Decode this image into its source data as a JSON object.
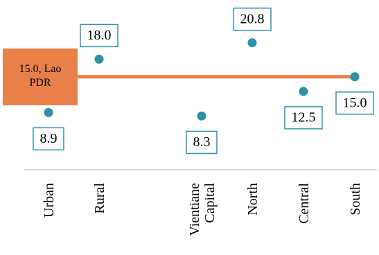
{
  "chart_data": {
    "type": "scatter",
    "title": "",
    "xlabel": "",
    "ylabel": "",
    "categories": [
      "Urban",
      "Rural",
      "Vientiane Capital",
      "North",
      "Central",
      "South"
    ],
    "category_lines": [
      [
        "Urban"
      ],
      [
        "Rural"
      ],
      [
        "Vientiane",
        "Capital"
      ],
      [
        "North"
      ],
      [
        "Central"
      ],
      [
        "South"
      ]
    ],
    "values": [
      8.9,
      18.0,
      8.3,
      20.8,
      12.5,
      15.0
    ],
    "value_labels": [
      "8.9",
      "18.0",
      "8.3",
      "20.8",
      "12.5",
      "15.0"
    ],
    "reference": {
      "value": 15.0,
      "label_lines": [
        "15.0, Lao",
        "PDR"
      ],
      "color": "#e8804a"
    },
    "marker_color": "#2e8fa8",
    "box_border_color": "#2e8fa8",
    "axis_color": "#d0d0d0",
    "ylim": [
      8.0,
      21.0
    ],
    "grid": false,
    "legend": "none"
  }
}
